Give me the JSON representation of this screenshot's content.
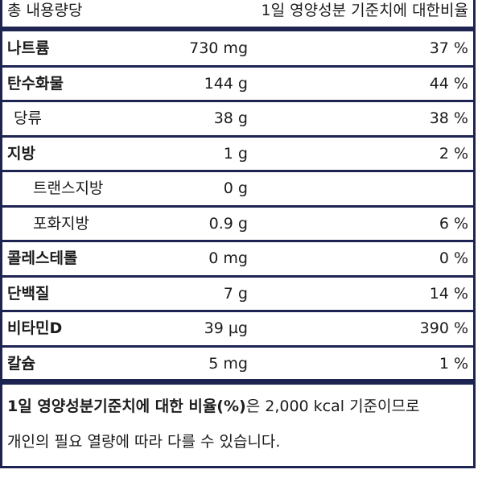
{
  "header": {
    "left": "총 내용량당",
    "right": "1일 영양성분 기준치에 대한비율"
  },
  "rows": [
    {
      "name": "나트륨",
      "amount": "730 mg",
      "percent": "37 %",
      "bold": true
    },
    {
      "name": "탄수화물",
      "amount": "144 g",
      "percent": "44 %",
      "bold": true
    },
    {
      "name": "당류",
      "amount": "38 g",
      "percent": "38 %",
      "bold": false,
      "indent": 1
    },
    {
      "name": "지방",
      "amount": "1 g",
      "percent": "2 %",
      "bold": true
    },
    {
      "name": "트랜스지방",
      "amount": "0 g",
      "bold": false,
      "indent": 2
    },
    {
      "name": "포화지방",
      "amount": "0.9 g",
      "percent": "6 %",
      "bold": false,
      "indent": 2
    },
    {
      "name": "콜레스테롤",
      "amount": "0 mg",
      "percent": "0 %",
      "bold": true
    },
    {
      "name": "단백질",
      "amount": "7 g",
      "percent": "14 %",
      "bold": true
    },
    {
      "name": "비타민D",
      "amount": "39 µg",
      "percent": "390 %",
      "bold": true
    },
    {
      "name": "칼슘",
      "amount": "5 mg",
      "percent": "1 %",
      "bold": true
    }
  ],
  "footnote": {
    "bold": "1일 영양성분기준치에 대한 비율(%)",
    "line1": "은 2,000 kcal 기준이므로",
    "line2": "개인의 필요 열량에 따라 다를 수 있습니다."
  }
}
